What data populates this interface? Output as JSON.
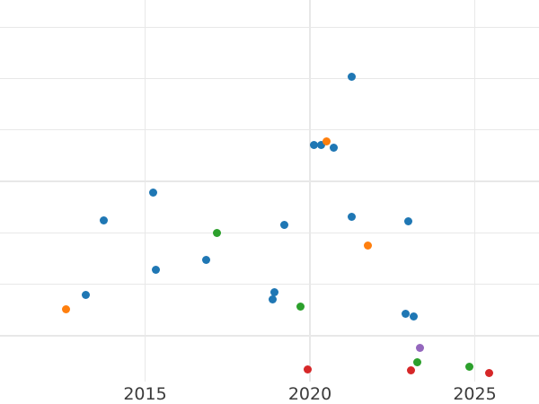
{
  "chart_data": {
    "type": "scatter",
    "title": "",
    "xlabel": "",
    "ylabel": "",
    "grid": true,
    "legend": "none",
    "x_ticks": [
      {
        "value": 2015,
        "label": "2015"
      },
      {
        "value": 2020,
        "label": "2020"
      },
      {
        "value": 2025,
        "label": "2025"
      }
    ],
    "xlim": [
      2010.6,
      2027.0
    ],
    "ylim": [
      -0.9,
      6.5
    ],
    "y_axis_labels_visible": false,
    "y_unit_note": "y values in unlabeled gridline units; one unit = one horizontal gridline step, 0 = lowest visible gridline",
    "y_gridlines": [
      0,
      1,
      2,
      3,
      4,
      5,
      6
    ],
    "marker_diameter_px": 9,
    "series": [
      {
        "name": "series-blue",
        "color": "#1f77b4",
        "points": [
          [
            2013.2,
            0.79
          ],
          [
            2013.75,
            2.25
          ],
          [
            2015.25,
            2.79
          ],
          [
            2015.33,
            1.29
          ],
          [
            2016.85,
            1.47
          ],
          [
            2018.87,
            0.7
          ],
          [
            2018.92,
            0.84
          ],
          [
            2019.22,
            2.15
          ],
          [
            2020.12,
            3.7
          ],
          [
            2020.34,
            3.7
          ],
          [
            2020.72,
            3.66
          ],
          [
            2021.27,
            5.04
          ],
          [
            2021.27,
            2.32
          ],
          [
            2022.9,
            0.42
          ],
          [
            2022.98,
            2.22
          ],
          [
            2023.15,
            0.38
          ]
        ]
      },
      {
        "name": "series-orange",
        "color": "#ff7f0e",
        "points": [
          [
            2012.6,
            0.52
          ],
          [
            2020.5,
            3.77
          ],
          [
            2021.76,
            1.76
          ]
        ]
      },
      {
        "name": "series-green",
        "color": "#2ca02c",
        "points": [
          [
            2017.18,
            1.99
          ],
          [
            2019.71,
            0.56
          ],
          [
            2023.26,
            -0.52
          ],
          [
            2024.84,
            -0.61
          ]
        ]
      },
      {
        "name": "series-red",
        "color": "#d62728",
        "points": [
          [
            2019.93,
            -0.66
          ],
          [
            2023.07,
            -0.68
          ],
          [
            2025.43,
            -0.73
          ]
        ]
      },
      {
        "name": "series-purple",
        "color": "#9467bd",
        "points": [
          [
            2023.34,
            -0.23
          ]
        ]
      }
    ]
  }
}
